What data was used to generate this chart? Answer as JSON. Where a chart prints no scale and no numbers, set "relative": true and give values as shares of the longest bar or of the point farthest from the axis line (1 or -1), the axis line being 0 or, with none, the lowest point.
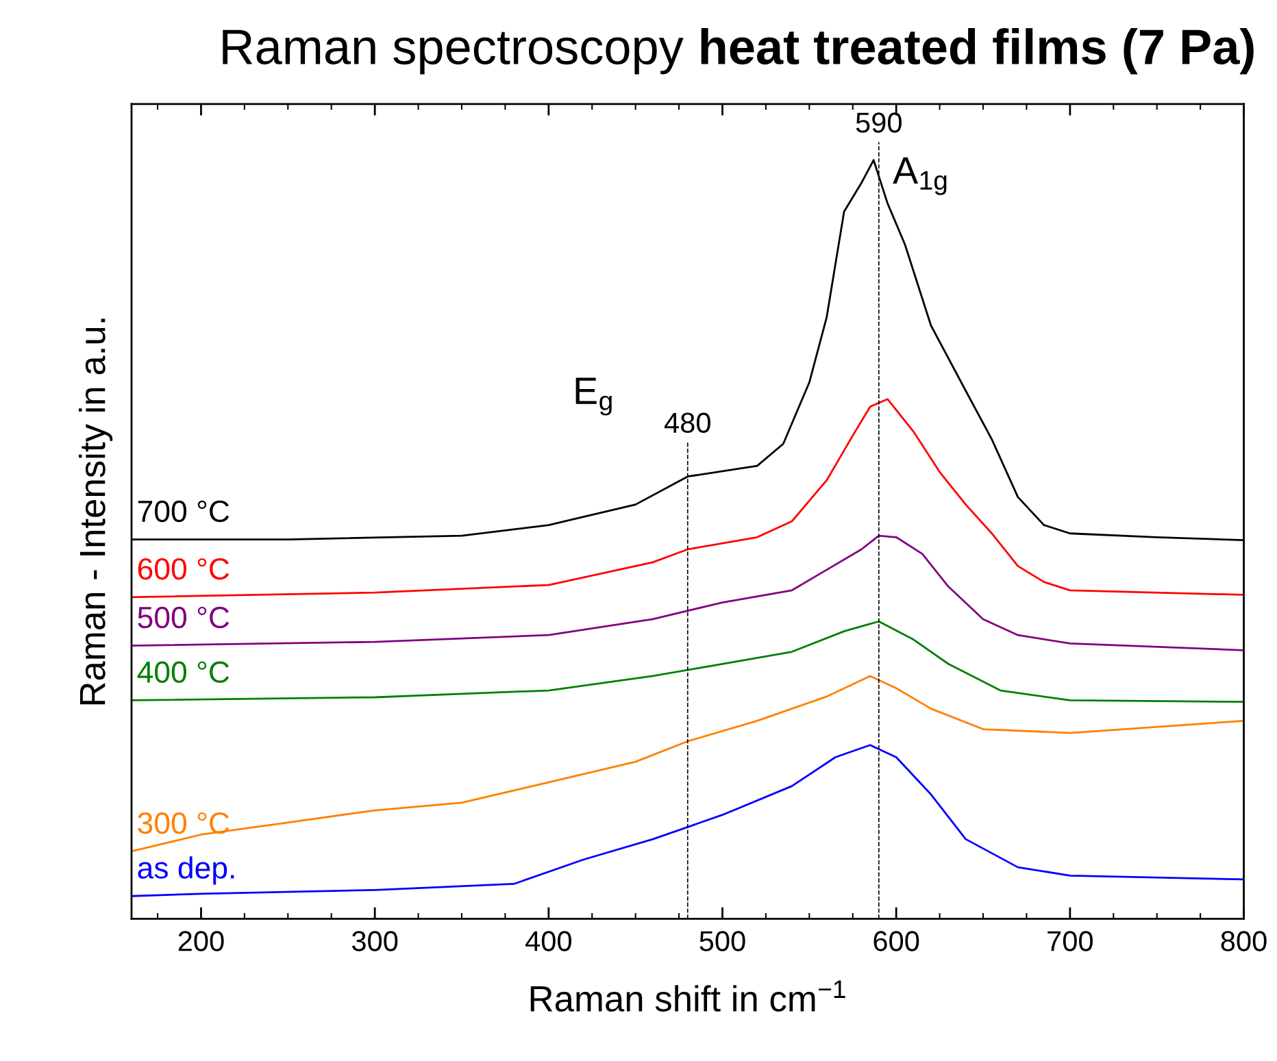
{
  "chart_data": {
    "type": "line",
    "title": "Raman spectroscopy",
    "subtitle": "heat treated films (7 Pa)",
    "xlabel": "Raman shift in cm$^{−1}$",
    "ylabel": "Raman - Intensity in a.u.",
    "relative": true,
    "xlim": [
      160,
      800
    ],
    "xticks": [
      200,
      300,
      400,
      500,
      600,
      700,
      800
    ],
    "grid": false,
    "legend": false,
    "marker": "none",
    "line_style": "solid",
    "series": [
      {
        "name": "700 °C",
        "color": "#000000",
        "x": [
          160,
          250,
          350,
          400,
          450,
          480,
          520,
          535,
          550,
          560,
          570,
          580,
          587,
          595,
          605,
          620,
          640,
          655,
          670,
          685,
          700,
          750,
          800
        ],
        "values": [
          0.5,
          0.5,
          0.505,
          0.519,
          0.546,
          0.583,
          0.597,
          0.626,
          0.707,
          0.793,
          0.932,
          0.97,
          1.0,
          0.943,
          0.889,
          0.782,
          0.696,
          0.632,
          0.556,
          0.519,
          0.508,
          0.503,
          0.499
        ]
      },
      {
        "name": "600 °C",
        "color": "#ff0000",
        "x": [
          160,
          300,
          400,
          460,
          480,
          520,
          540,
          560,
          575,
          585,
          595,
          610,
          625,
          640,
          655,
          670,
          685,
          700,
          800
        ],
        "values": [
          0.424,
          0.43,
          0.44,
          0.47,
          0.487,
          0.503,
          0.524,
          0.578,
          0.637,
          0.675,
          0.685,
          0.642,
          0.589,
          0.546,
          0.508,
          0.465,
          0.444,
          0.433,
          0.427
        ]
      },
      {
        "name": "500 °C",
        "color": "#800080",
        "x": [
          160,
          300,
          400,
          460,
          500,
          540,
          560,
          580,
          590,
          600,
          615,
          630,
          650,
          670,
          700,
          800
        ],
        "values": [
          0.36,
          0.365,
          0.374,
          0.395,
          0.417,
          0.433,
          0.46,
          0.487,
          0.505,
          0.503,
          0.481,
          0.438,
          0.395,
          0.374,
          0.363,
          0.354
        ]
      },
      {
        "name": "400 °C",
        "color": "#008000",
        "x": [
          160,
          300,
          400,
          460,
          500,
          540,
          570,
          590,
          610,
          630,
          660,
          700,
          800
        ],
        "values": [
          0.288,
          0.292,
          0.301,
          0.32,
          0.336,
          0.352,
          0.379,
          0.392,
          0.368,
          0.336,
          0.301,
          0.288,
          0.286
        ]
      },
      {
        "name": "300 °C",
        "color": "#ff8000",
        "x": [
          160,
          200,
          250,
          300,
          350,
          400,
          450,
          480,
          520,
          560,
          585,
          600,
          620,
          650,
          700,
          800
        ],
        "values": [
          0.089,
          0.111,
          0.127,
          0.143,
          0.153,
          0.18,
          0.207,
          0.234,
          0.261,
          0.293,
          0.32,
          0.304,
          0.277,
          0.25,
          0.245,
          0.261
        ]
      },
      {
        "name": "as dep.",
        "color": "#0000ff",
        "x": [
          160,
          200,
          300,
          380,
          420,
          460,
          500,
          540,
          565,
          585,
          600,
          620,
          640,
          670,
          700,
          800
        ],
        "values": [
          0.03,
          0.033,
          0.038,
          0.046,
          0.078,
          0.105,
          0.137,
          0.175,
          0.213,
          0.229,
          0.213,
          0.164,
          0.105,
          0.068,
          0.057,
          0.052
        ]
      }
    ],
    "ref_lines": [
      {
        "axis": "x",
        "value": 480,
        "label": "480",
        "color": "#000000",
        "line_style": "dashed"
      },
      {
        "axis": "x",
        "value": 590,
        "label": "590",
        "color": "#000000",
        "line_style": "dashed"
      }
    ],
    "annotations": [
      "E$_{g}$",
      "A$_{1g}$"
    ]
  }
}
